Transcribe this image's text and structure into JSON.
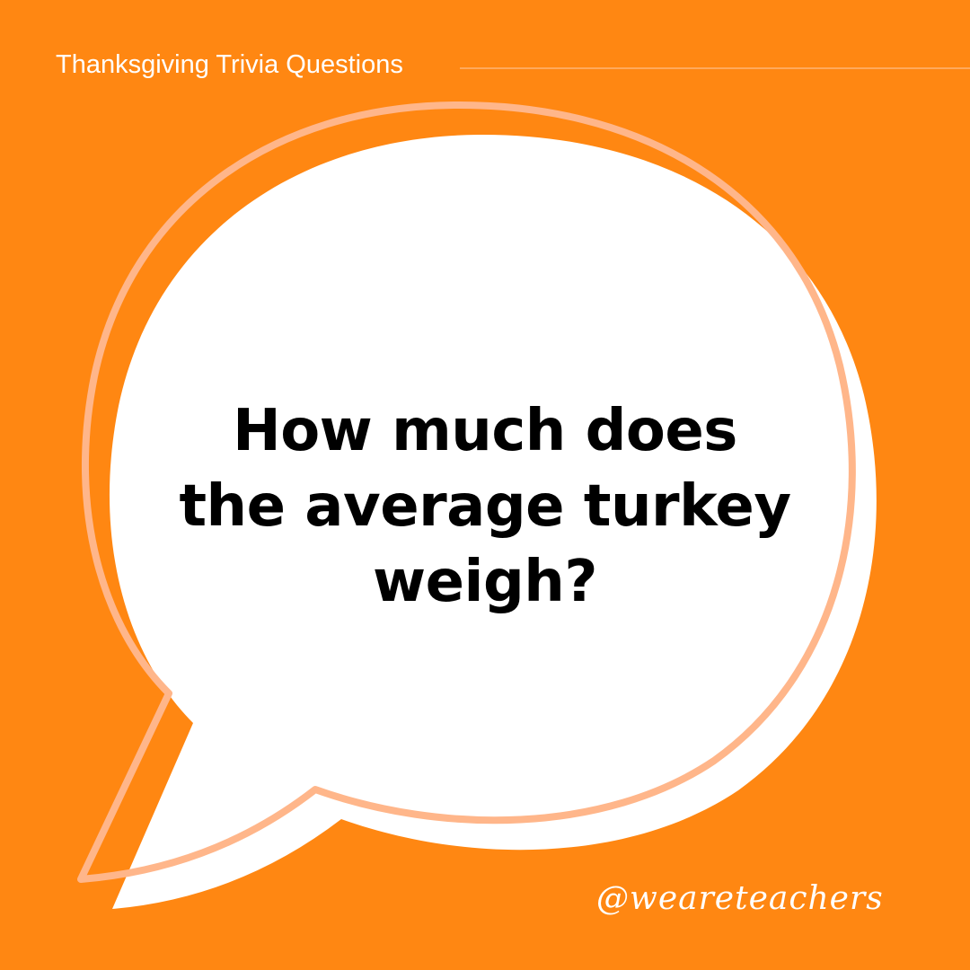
{
  "header": {
    "title": "Thanksgiving Trivia Questions"
  },
  "question": {
    "lines": [
      "How much does",
      "the average turkey",
      "weigh?"
    ]
  },
  "footer": {
    "handle": "@weareteachers"
  },
  "colors": {
    "background": "#ff8712",
    "bubble": "#ffffff",
    "outline": "#ffb68a",
    "text": "#000000"
  },
  "icons": {
    "bubble": "speech-bubble"
  }
}
